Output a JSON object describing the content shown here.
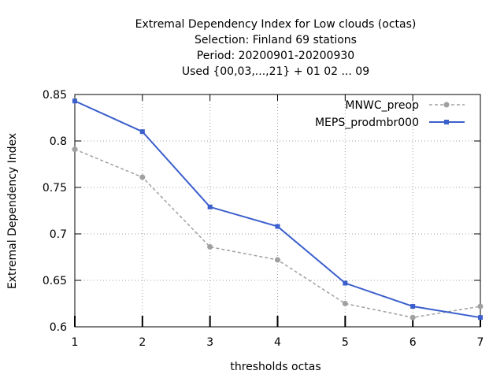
{
  "chart_data": {
    "type": "line",
    "title_lines": [
      "Extremal Dependency Index  for Low clouds (octas)",
      "Selection: Finland     69 stations",
      "Period: 20200901-20200930",
      "Used {00,03,...,21} + 01 02 ... 09"
    ],
    "xlabel": "thresholds octas",
    "ylabel": "Extremal Dependency Index",
    "x": [
      1,
      2,
      3,
      4,
      5,
      6,
      7
    ],
    "xticks": [
      "1",
      "2",
      "3",
      "4",
      "5",
      "6",
      "7"
    ],
    "xlim": [
      1,
      7
    ],
    "ylim": [
      0.6,
      0.85
    ],
    "yticks": [
      0.6,
      0.65,
      0.7,
      0.75,
      0.8,
      0.85
    ],
    "ytick_labels": [
      "0.6",
      "0.65",
      "0.7",
      "0.75",
      "0.8",
      "0.85"
    ],
    "grid": true,
    "legend_position": "top-right",
    "series": [
      {
        "name": "MNWC_preop",
        "color": "#a0a0a0",
        "dash": true,
        "values": [
          0.791,
          0.761,
          0.686,
          0.672,
          0.625,
          0.61,
          0.622
        ]
      },
      {
        "name": "MEPS_prodmbr000",
        "color": "#3b5fcc",
        "dash": false,
        "values": [
          0.843,
          0.81,
          0.729,
          0.708,
          0.647,
          0.622,
          0.61
        ]
      }
    ]
  }
}
